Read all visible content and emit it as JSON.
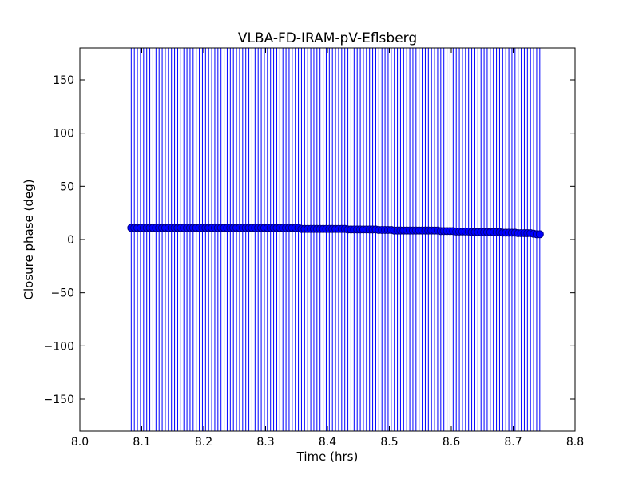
{
  "chart_data": {
    "type": "scatter",
    "title": "VLBA-FD-IRAM-pV-Eflsberg",
    "xlabel": "Time (hrs)",
    "ylabel": "Closure phase (deg)",
    "xlim": [
      8.0,
      8.8
    ],
    "ylim": [
      -180,
      180
    ],
    "xticks": [
      "8.0",
      "8.1",
      "8.2",
      "8.3",
      "8.4",
      "8.5",
      "8.6",
      "8.7",
      "8.8"
    ],
    "yticks": [
      "150",
      "100",
      "50",
      "0",
      "−50",
      "−100",
      "−150"
    ],
    "ytick_values": [
      150,
      100,
      50,
      0,
      -50,
      -100,
      -150
    ],
    "xtick_values": [
      8.0,
      8.1,
      8.2,
      8.3,
      8.4,
      8.5,
      8.6,
      8.7,
      8.8
    ],
    "grid": false,
    "series": [
      {
        "name": "closure phase",
        "color": "#0000ff",
        "edge_color": "#000080",
        "error_bar": 200,
        "x": [
          8.083,
          8.088,
          8.093,
          8.098,
          8.103,
          8.108,
          8.113,
          8.118,
          8.123,
          8.128,
          8.133,
          8.138,
          8.143,
          8.148,
          8.153,
          8.158,
          8.163,
          8.168,
          8.173,
          8.178,
          8.183,
          8.188,
          8.193,
          8.198,
          8.203,
          8.208,
          8.213,
          8.218,
          8.223,
          8.228,
          8.233,
          8.238,
          8.243,
          8.248,
          8.253,
          8.258,
          8.263,
          8.268,
          8.273,
          8.278,
          8.283,
          8.288,
          8.293,
          8.298,
          8.303,
          8.308,
          8.313,
          8.318,
          8.323,
          8.328,
          8.333,
          8.338,
          8.343,
          8.348,
          8.353,
          8.358,
          8.363,
          8.368,
          8.373,
          8.378,
          8.383,
          8.388,
          8.393,
          8.398,
          8.403,
          8.408,
          8.413,
          8.418,
          8.423,
          8.428,
          8.433,
          8.438,
          8.443,
          8.448,
          8.453,
          8.458,
          8.463,
          8.468,
          8.473,
          8.478,
          8.483,
          8.488,
          8.493,
          8.498,
          8.503,
          8.508,
          8.513,
          8.518,
          8.523,
          8.528,
          8.533,
          8.538,
          8.543,
          8.548,
          8.553,
          8.558,
          8.563,
          8.568,
          8.573,
          8.578,
          8.583,
          8.588,
          8.593,
          8.598,
          8.603,
          8.608,
          8.613,
          8.618,
          8.623,
          8.628,
          8.633,
          8.638,
          8.643,
          8.648,
          8.653,
          8.658,
          8.663,
          8.668,
          8.673,
          8.678,
          8.683,
          8.688,
          8.693,
          8.698,
          8.703,
          8.708,
          8.713,
          8.718,
          8.723,
          8.728,
          8.733,
          8.738,
          8.743
        ],
        "y": [
          11,
          11,
          11,
          11,
          11,
          11,
          11,
          11,
          11,
          11,
          11,
          11,
          11,
          11,
          11,
          11,
          11,
          11,
          11,
          11,
          11,
          11,
          11,
          11,
          11,
          11,
          11,
          11,
          11,
          11,
          11,
          11,
          11,
          11,
          11,
          11,
          11,
          11,
          11,
          11,
          11,
          11,
          11,
          11,
          11,
          11,
          11,
          11,
          11,
          11,
          11,
          11,
          11,
          11,
          11,
          10,
          10,
          10,
          10,
          10,
          10,
          10,
          10,
          10,
          10,
          10,
          10,
          10,
          10,
          10,
          9.5,
          9.5,
          9.5,
          9.5,
          9.5,
          9.5,
          9.5,
          9.5,
          9.5,
          9.5,
          9,
          9,
          9,
          9,
          9,
          8.5,
          8.5,
          8.5,
          8.5,
          8.5,
          8.5,
          8.5,
          8.5,
          8.5,
          8.5,
          8.5,
          8.5,
          8.5,
          8.5,
          8.5,
          8,
          8,
          8,
          8,
          8,
          7.5,
          7.5,
          7.5,
          7.5,
          7.5,
          7,
          7,
          7,
          7,
          7,
          7,
          7,
          7,
          7,
          7,
          6.5,
          6.5,
          6.5,
          6.5,
          6.5,
          6,
          6,
          6,
          6,
          6,
          5.5,
          5,
          5
        ]
      }
    ]
  }
}
